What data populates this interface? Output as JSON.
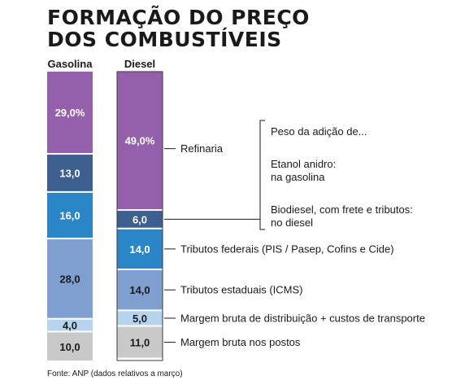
{
  "title_lines": [
    "FORMAÇÃO DO PREÇO",
    "DOS COMBUSTÍVEIS"
  ],
  "footnote": "Fonte: ANP (dados relativos a março)",
  "chart_data": {
    "type": "bar",
    "stacked": true,
    "categories": [
      "Gasolina",
      "Diesel"
    ],
    "series": [
      {
        "name": "Refinaria",
        "color": "#9560ab",
        "text_color": "#ffffff",
        "values": [
          29.0,
          49.0
        ],
        "labels": [
          "29,0%",
          "49,0%"
        ]
      },
      {
        "name": "Peso da adição de...",
        "color": "#3d5f8f",
        "text_color": "#ffffff",
        "values": [
          13.0,
          6.0
        ],
        "labels": [
          "13,0",
          "6,0"
        ]
      },
      {
        "name": "Tributos federais (PIS / Pasep, Cofins e Cide)",
        "color": "#2b86c8",
        "text_color": "#ffffff",
        "values": [
          16.0,
          14.0
        ],
        "labels": [
          "16,0",
          "14,0"
        ]
      },
      {
        "name": "Tributos estaduais (ICMS)",
        "color": "#7e9fd0",
        "text_color": "#1a1a1a",
        "values": [
          28.0,
          14.0
        ],
        "labels": [
          "28,0",
          "14,0"
        ]
      },
      {
        "name": "Margem bruta de distribuição + custos de transporte",
        "color": "#b6d4ee",
        "text_color": "#1a1a1a",
        "values": [
          4.0,
          5.0
        ],
        "labels": [
          "4,0",
          "5,0"
        ]
      },
      {
        "name": "Margem bruta nos postos",
        "color": "#c9c9c9",
        "text_color": "#1a1a1a",
        "values": [
          10.0,
          11.0
        ],
        "labels": [
          "10,0",
          "11,0"
        ]
      }
    ],
    "bracket_text": [
      "Peso da adição de...",
      "Etanol anidro:",
      "na gasolina",
      "Biodiesel, com frete e tributos:",
      "no diesel"
    ],
    "ylim": [
      0,
      100
    ],
    "grid": false
  }
}
